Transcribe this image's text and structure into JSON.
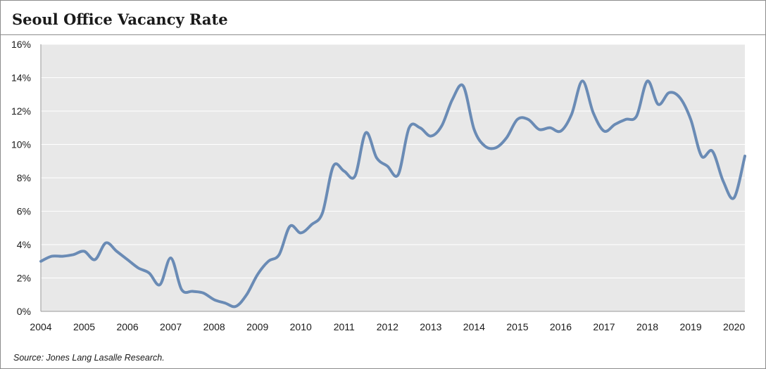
{
  "chart_data": {
    "type": "line",
    "title": "Seoul Office Vacancy Rate",
    "xlabel": "",
    "ylabel": "",
    "xlim": [
      2004,
      2020.25
    ],
    "ylim": [
      0,
      16
    ],
    "y_ticks": [
      0,
      2,
      4,
      6,
      8,
      10,
      12,
      14,
      16
    ],
    "y_tick_labels": [
      "0%",
      "2%",
      "4%",
      "6%",
      "8%",
      "10%",
      "12%",
      "14%",
      "16%"
    ],
    "x_ticks": [
      2004,
      2005,
      2006,
      2007,
      2008,
      2009,
      2010,
      2011,
      2012,
      2013,
      2014,
      2015,
      2016,
      2017,
      2018,
      2019,
      2020
    ],
    "x_tick_labels": [
      "2004",
      "2005",
      "2006",
      "2007",
      "2008",
      "2009",
      "2010",
      "2011",
      "2012",
      "2013",
      "2014",
      "2015",
      "2016",
      "2017",
      "2018",
      "2019",
      "2020"
    ],
    "grid": true,
    "legend": "none",
    "series": [
      {
        "color": "#6a8bb5",
        "x": [
          2004.0,
          2004.25,
          2004.5,
          2004.75,
          2005.0,
          2005.25,
          2005.5,
          2005.75,
          2006.0,
          2006.25,
          2006.5,
          2006.75,
          2007.0,
          2007.25,
          2007.5,
          2007.75,
          2008.0,
          2008.25,
          2008.5,
          2008.75,
          2009.0,
          2009.25,
          2009.5,
          2009.75,
          2010.0,
          2010.25,
          2010.5,
          2010.75,
          2011.0,
          2011.25,
          2011.5,
          2011.75,
          2012.0,
          2012.25,
          2012.5,
          2012.75,
          2013.0,
          2013.25,
          2013.5,
          2013.75,
          2014.0,
          2014.25,
          2014.5,
          2014.75,
          2015.0,
          2015.25,
          2015.5,
          2015.75,
          2016.0,
          2016.25,
          2016.5,
          2016.75,
          2017.0,
          2017.25,
          2017.5,
          2017.75,
          2018.0,
          2018.25,
          2018.5,
          2018.75,
          2019.0,
          2019.25,
          2019.5,
          2019.75,
          2020.0,
          2020.25
        ],
        "values": [
          3.0,
          3.3,
          3.3,
          3.4,
          3.6,
          3.1,
          4.1,
          3.6,
          3.1,
          2.6,
          2.3,
          1.6,
          3.2,
          1.3,
          1.2,
          1.1,
          0.7,
          0.5,
          0.3,
          1.0,
          2.2,
          3.0,
          3.4,
          5.1,
          4.7,
          5.2,
          5.9,
          8.7,
          8.4,
          8.1,
          10.7,
          9.2,
          8.7,
          8.2,
          11.0,
          11.0,
          10.5,
          11.1,
          12.7,
          13.5,
          10.9,
          9.9,
          9.8,
          10.4,
          11.5,
          11.5,
          10.9,
          11.0,
          10.8,
          11.8,
          13.8,
          11.9,
          10.8,
          11.2,
          11.5,
          11.7,
          13.8,
          12.4,
          13.1,
          12.8,
          11.5,
          9.3,
          9.6,
          7.8,
          6.8,
          9.3
        ]
      }
    ]
  },
  "source": "Source: Jones Lang Lasalle Research."
}
